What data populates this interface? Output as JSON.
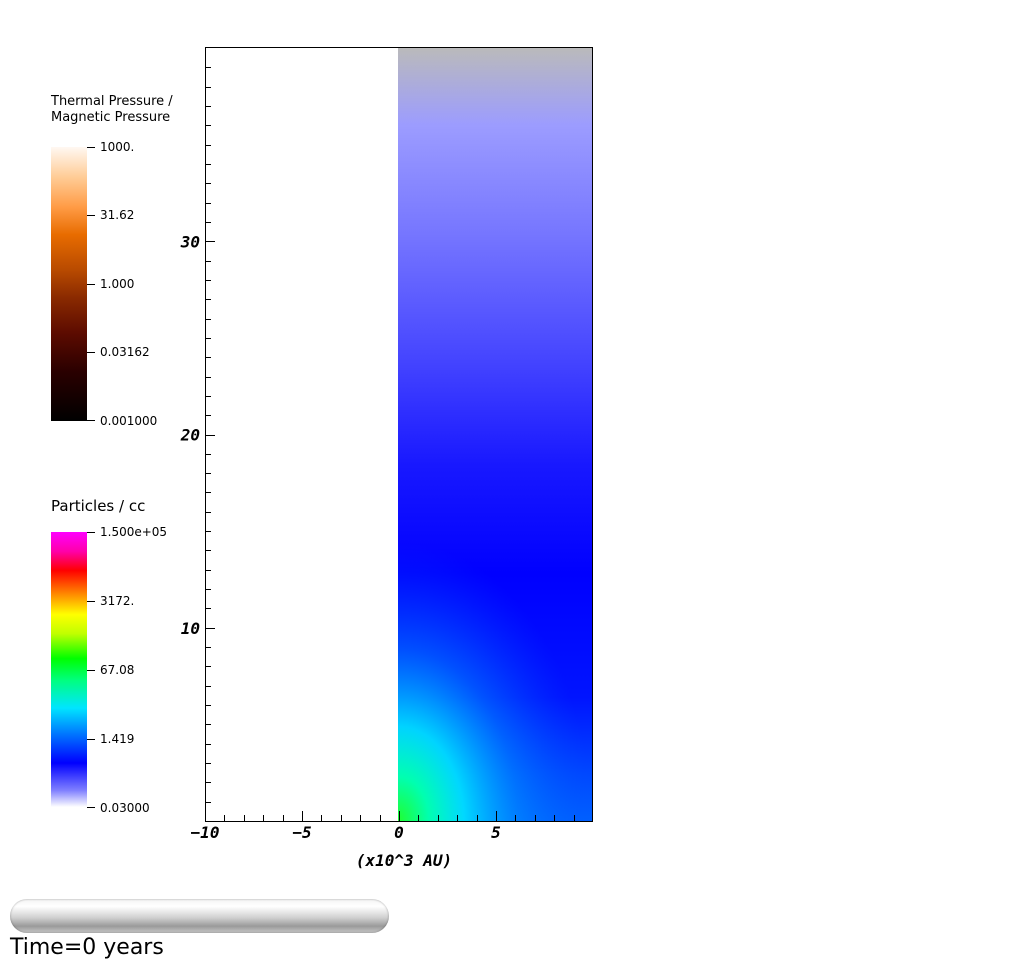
{
  "chart_data": {
    "type": "heatmap",
    "x_axis": {
      "range": [
        -10,
        10
      ],
      "ticks": [
        -10,
        -5,
        0,
        5
      ],
      "tick_labels": [
        "-10",
        "-5",
        "0",
        "5"
      ],
      "label": "(x10^3 AU)"
    },
    "y_axis": {
      "range": [
        0,
        40
      ],
      "ticks": [
        10,
        20,
        30
      ],
      "tick_labels": [
        "10",
        "20",
        "30"
      ]
    },
    "data_region": {
      "x_range": [
        0,
        10
      ],
      "y_range": [
        0,
        40
      ]
    },
    "colorbars": [
      {
        "title": "Thermal Pressure /\nMagnetic Pressure",
        "labels": [
          "1000.",
          "31.62",
          "1.000",
          "0.03162",
          "0.001000"
        ],
        "scale": "log",
        "range": [
          0.001,
          1000
        ]
      },
      {
        "title": "Particles / cc",
        "labels": [
          "1.500e+05",
          "3172.",
          "67.08",
          "1.419",
          "0.03000"
        ],
        "scale": "log",
        "range": [
          0.03,
          150000
        ]
      }
    ],
    "time_label": "Time=0 years",
    "progress": 0
  }
}
